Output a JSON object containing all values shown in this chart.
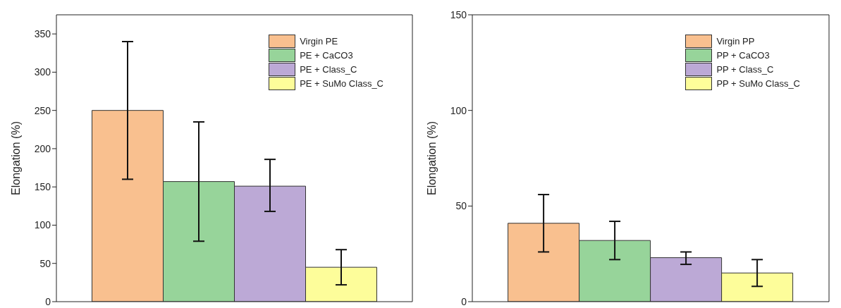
{
  "chart_data": [
    {
      "type": "bar",
      "categories": [
        null
      ],
      "ylabel": "Elongation (%)",
      "ylim": [
        0,
        375
      ],
      "yticks": [
        0,
        50,
        100,
        150,
        200,
        250,
        300,
        350
      ],
      "tick_labels": "y",
      "legend": "top right",
      "grid": false,
      "series": [
        {
          "name": "Virgin PE",
          "color": "#f9c08f",
          "values": [
            250
          ],
          "errors": [
            [
              160,
              340
            ]
          ]
        },
        {
          "name": "PE + CaCO3",
          "color": "#97d49a",
          "values": [
            157
          ],
          "errors": [
            [
              79,
              235
            ]
          ]
        },
        {
          "name": "PE + Class_C",
          "color": "#bca9d6",
          "values": [
            151
          ],
          "errors": [
            [
              118,
              186
            ]
          ]
        },
        {
          "name": "PE + SuMo Class_C",
          "color": "#fdfd9a",
          "values": [
            45
          ],
          "errors": [
            [
              22,
              68
            ]
          ]
        }
      ]
    },
    {
      "type": "bar",
      "categories": [
        null
      ],
      "ylabel": "Elongation (%)",
      "ylim": [
        0,
        150
      ],
      "yticks": [
        0,
        50,
        100,
        150
      ],
      "tick_labels": "y",
      "legend": "top right",
      "grid": false,
      "series": [
        {
          "name": "Virgin PP",
          "color": "#f9c08f",
          "values": [
            41
          ],
          "errors": [
            [
              26,
              56
            ]
          ]
        },
        {
          "name": "PP + CaCO3",
          "color": "#97d49a",
          "values": [
            32
          ],
          "errors": [
            [
              22,
              42
            ]
          ]
        },
        {
          "name": "PP + Class_C",
          "color": "#bca9d6",
          "values": [
            23
          ],
          "errors": [
            [
              19.5,
              26
            ]
          ]
        },
        {
          "name": "PP + SuMo Class_C",
          "color": "#fdfd9a",
          "values": [
            15
          ],
          "errors": [
            [
              8,
              22
            ]
          ]
        }
      ]
    }
  ]
}
